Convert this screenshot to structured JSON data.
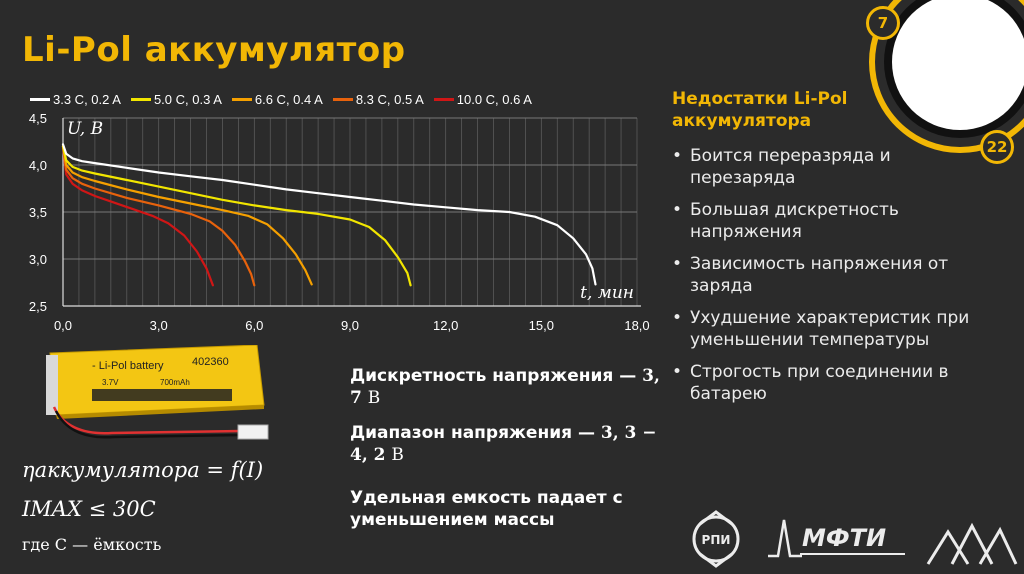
{
  "title": "Li-Pol аккумулятор",
  "badges": {
    "top": "7",
    "bottom": "22"
  },
  "colors": {
    "accent": "#f2b705",
    "background": "#2b2b2b"
  },
  "chart_data": {
    "type": "line",
    "xlabel": "t, мин",
    "ylabel": "U, В",
    "xlim": [
      0,
      18
    ],
    "ylim": [
      2.5,
      4.5
    ],
    "x_ticks": [
      "0,0",
      "3,0",
      "6,0",
      "9,0",
      "12,0",
      "15,0",
      "18,0"
    ],
    "y_ticks": [
      "2,5",
      "3,0",
      "3,5",
      "4,0",
      "4,5"
    ],
    "grid": true,
    "legend_position": "top",
    "series": [
      {
        "name": "3.3 C, 0.2 A",
        "color": "#ffffff",
        "x": [
          0,
          0.1,
          0.3,
          0.6,
          1.0,
          2.0,
          3.0,
          4.0,
          5.0,
          6.0,
          7.0,
          8.0,
          9.0,
          10.0,
          11.0,
          12.0,
          13.0,
          14.0,
          14.8,
          15.5,
          16.0,
          16.4,
          16.6,
          16.7
        ],
        "y": [
          4.22,
          4.12,
          4.07,
          4.04,
          4.02,
          3.97,
          3.92,
          3.88,
          3.84,
          3.79,
          3.74,
          3.7,
          3.66,
          3.62,
          3.58,
          3.55,
          3.52,
          3.5,
          3.45,
          3.36,
          3.22,
          3.05,
          2.9,
          2.73
        ]
      },
      {
        "name": "5.0 C, 0.3 A",
        "color": "#f2e600",
        "x": [
          0,
          0.1,
          0.3,
          0.6,
          1.0,
          2.0,
          3.0,
          4.0,
          5.0,
          6.0,
          7.0,
          8.0,
          9.0,
          9.6,
          10.1,
          10.5,
          10.8,
          10.9
        ],
        "y": [
          4.2,
          4.05,
          3.98,
          3.94,
          3.91,
          3.84,
          3.77,
          3.7,
          3.63,
          3.57,
          3.52,
          3.48,
          3.42,
          3.34,
          3.2,
          3.02,
          2.85,
          2.72
        ]
      },
      {
        "name": "6.6 C, 0.4 A",
        "color": "#f5a000",
        "x": [
          0,
          0.1,
          0.3,
          0.6,
          1.0,
          2.0,
          3.0,
          4.0,
          5.0,
          5.8,
          6.4,
          6.9,
          7.3,
          7.6,
          7.8
        ],
        "y": [
          4.2,
          4.0,
          3.92,
          3.87,
          3.83,
          3.74,
          3.66,
          3.59,
          3.52,
          3.46,
          3.37,
          3.22,
          3.05,
          2.88,
          2.73
        ]
      },
      {
        "name": "8.3 C, 0.5 A",
        "color": "#e8620c",
        "x": [
          0,
          0.1,
          0.3,
          0.6,
          1.0,
          2.0,
          3.0,
          4.0,
          4.6,
          5.0,
          5.4,
          5.7,
          5.9,
          6.0
        ],
        "y": [
          4.2,
          3.95,
          3.86,
          3.8,
          3.75,
          3.65,
          3.57,
          3.48,
          3.4,
          3.3,
          3.15,
          2.98,
          2.84,
          2.72
        ]
      },
      {
        "name": "10.0 C, 0.6 A",
        "color": "#d01616",
        "x": [
          0,
          0.1,
          0.3,
          0.6,
          1.0,
          1.6,
          2.2,
          2.8,
          3.3,
          3.8,
          4.2,
          4.5,
          4.7
        ],
        "y": [
          4.2,
          3.9,
          3.8,
          3.73,
          3.67,
          3.6,
          3.53,
          3.46,
          3.38,
          3.25,
          3.08,
          2.9,
          2.72
        ]
      }
    ]
  },
  "side": {
    "title": "Недостатки Li-Pol аккумулятора",
    "items": [
      "Боится переразряда и перезаряда",
      "Большая дискретность напряжения",
      "Зависимость напряжения от заряда",
      "Ухудшение характеристик при уменьшении температуры",
      "Строгость при соединении в батарею"
    ]
  },
  "battery": {
    "label": "- Li-Pol battery",
    "code": "402360",
    "voltage": "3.7V",
    "capacity": "700mAh"
  },
  "notes": {
    "discreteness_label": "Дискретность напряжения —",
    "discreteness_value": "3, 7",
    "discreteness_unit": "В",
    "range_label": "Диапазон напряжения —",
    "range_value": "3, 3 − 4, 2",
    "range_unit": "В",
    "capacity_note": "Удельная емкость падает с уменьшением массы"
  },
  "formulas": {
    "f1": "ηаккумулятора = f(I)",
    "f2": "IMAX ≤ 30C",
    "f3": "где C — ёмкость"
  },
  "logos": {
    "rpi": "РПИ",
    "mfti": "МФТИ"
  }
}
